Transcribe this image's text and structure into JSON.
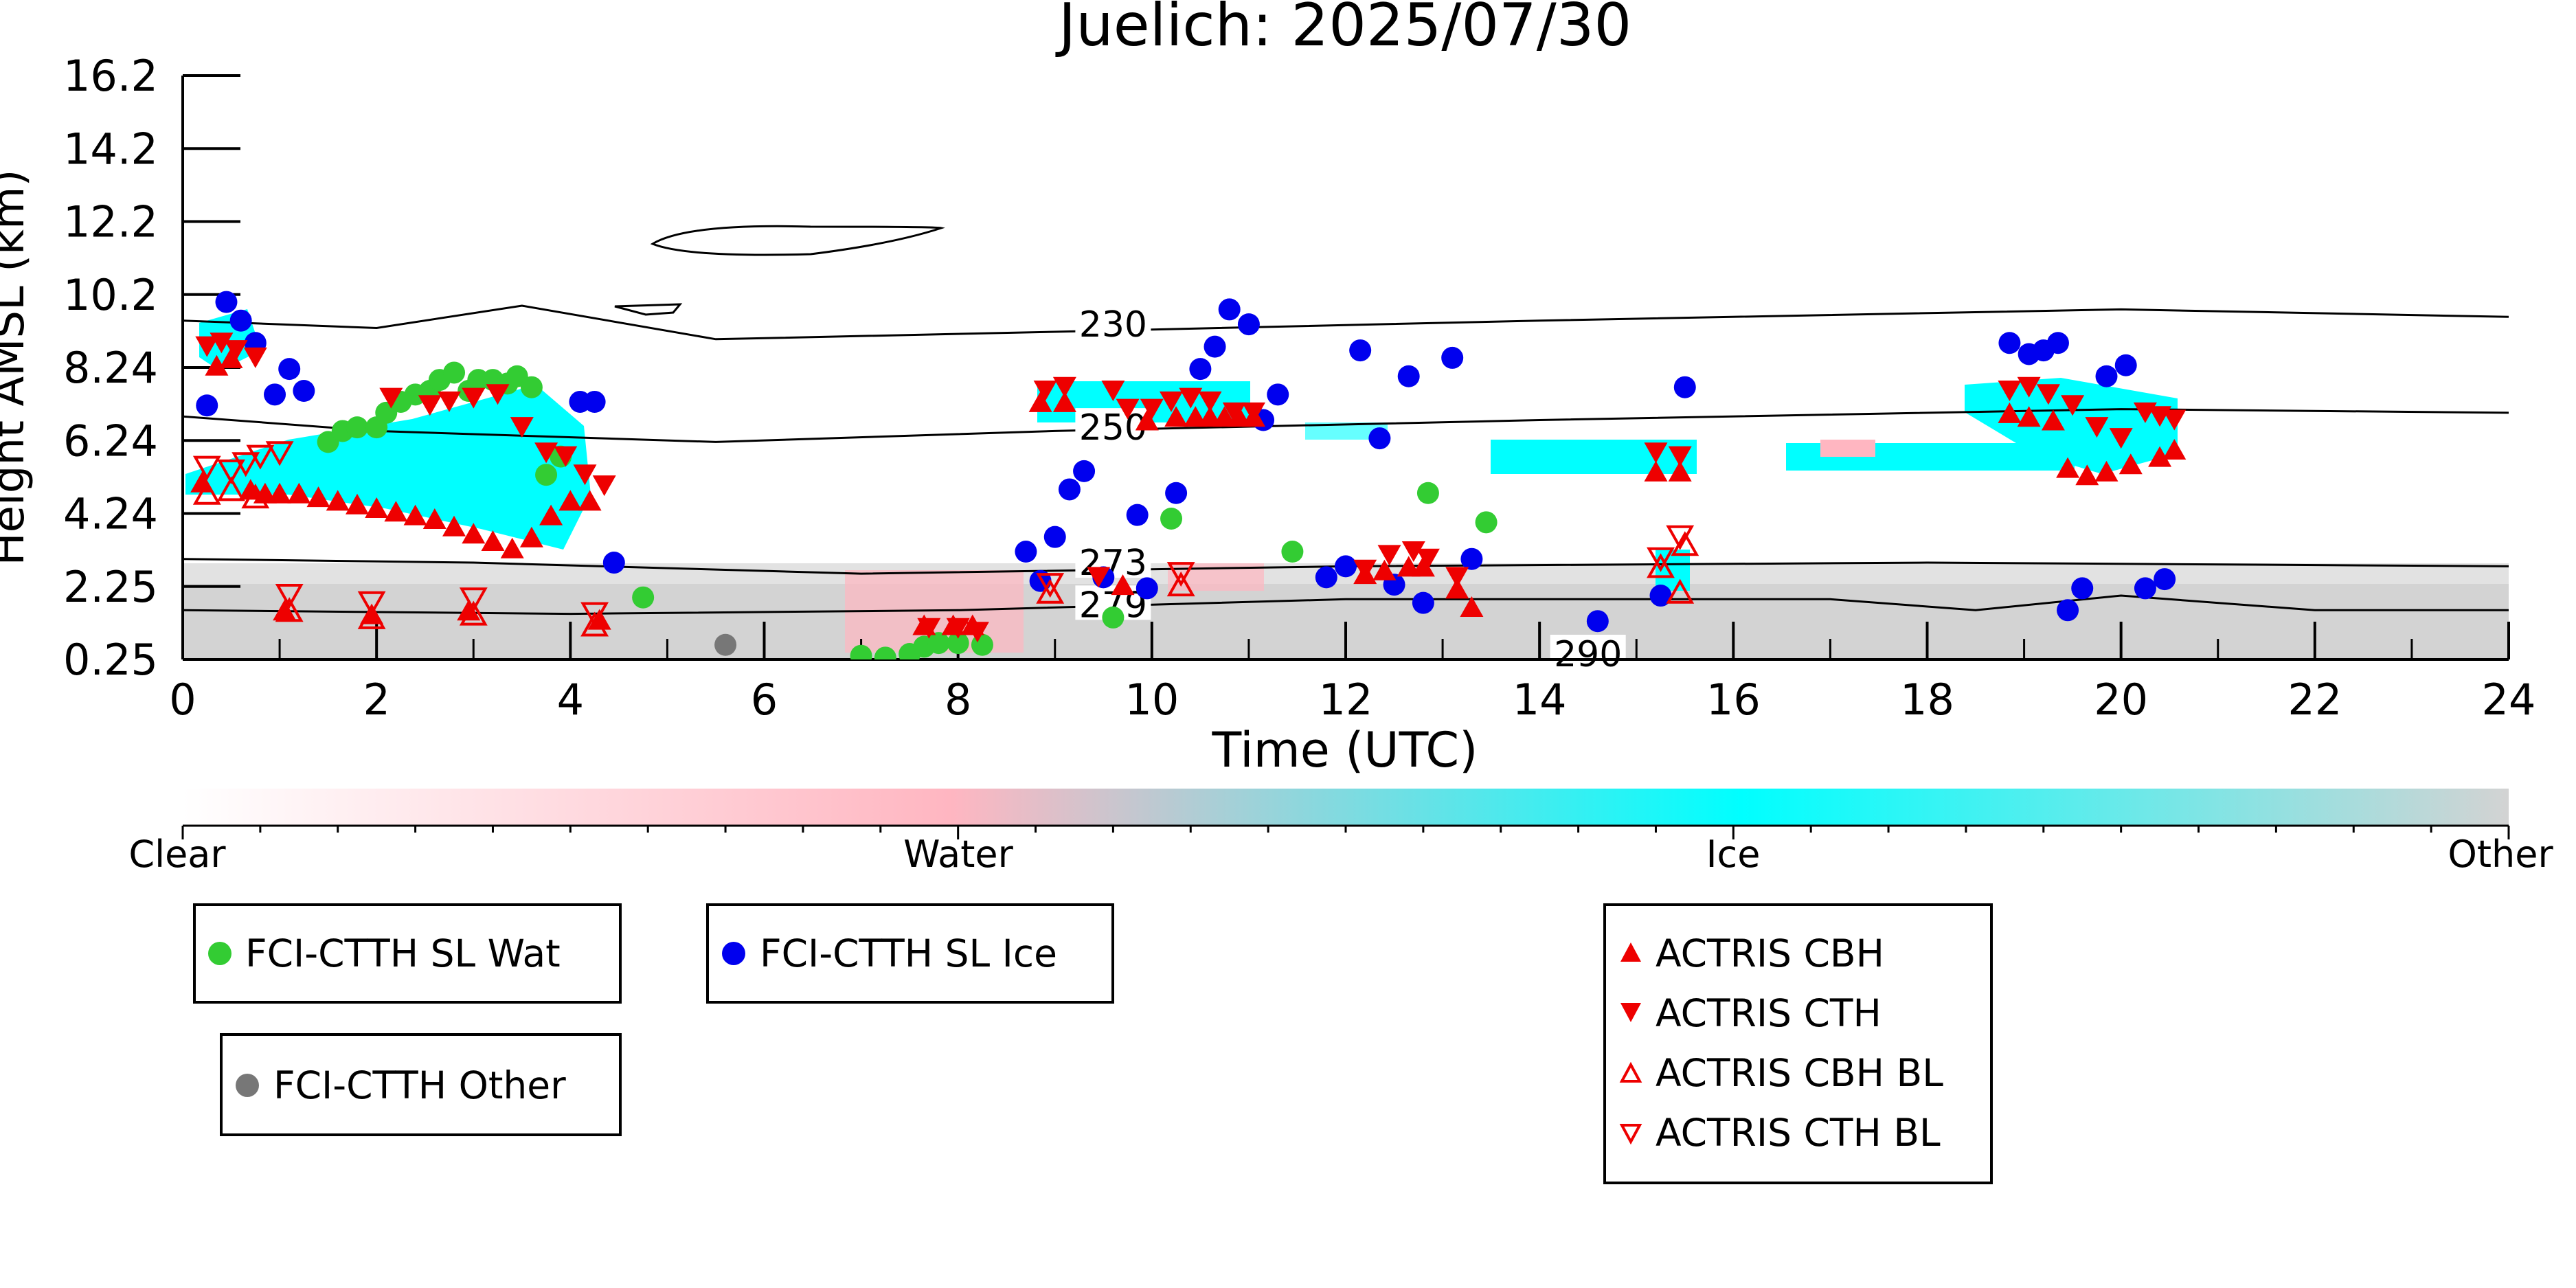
{
  "chart_data": {
    "type": "scatter",
    "title": "Juelich: 2025/07/30",
    "xlabel": "Time (UTC)",
    "ylabel": "Height AMSL (km)",
    "xlim": [
      0,
      24
    ],
    "ylim": [
      0.25,
      16.2
    ],
    "x_ticks": [
      "0",
      "2",
      "4",
      "6",
      "8",
      "10",
      "12",
      "14",
      "16",
      "18",
      "20",
      "22",
      "24"
    ],
    "y_ticks": [
      "0.25",
      "2.25",
      "4.24",
      "6.24",
      "8.24",
      "10.2",
      "12.2",
      "14.2",
      "16.2"
    ],
    "y_tick_values": [
      0.25,
      2.25,
      4.24,
      6.24,
      8.24,
      10.2,
      12.2,
      14.2,
      16.2
    ],
    "grid": false,
    "colorbar": {
      "labels": [
        "Clear",
        "Water",
        "Ice",
        "Other"
      ],
      "colors": [
        "#ffffff",
        "#ffb6c1",
        "#00ffff",
        "#d3d3d3"
      ]
    },
    "temperature_contour_labels": [
      {
        "text": "230",
        "x": 9.6,
        "y": 9.4
      },
      {
        "text": "250",
        "x": 9.6,
        "y": 6.6
      },
      {
        "text": "273",
        "x": 9.6,
        "y": 2.9
      },
      {
        "text": "279",
        "x": 9.6,
        "y": 1.75
      },
      {
        "text": "290",
        "x": 14.5,
        "y": 0.4
      }
    ],
    "temperature_contours": [
      {
        "level": 230,
        "points": [
          [
            0,
            9.5
          ],
          [
            2,
            9.3
          ],
          [
            3.5,
            9.9
          ],
          [
            5.5,
            9.0
          ],
          [
            9,
            9.2
          ],
          [
            14,
            9.5
          ],
          [
            20,
            9.8
          ],
          [
            24,
            9.6
          ]
        ]
      },
      {
        "level": 250,
        "points": [
          [
            0,
            6.9
          ],
          [
            2,
            6.5
          ],
          [
            5.5,
            6.2
          ],
          [
            9,
            6.5
          ],
          [
            14,
            6.8
          ],
          [
            20,
            7.1
          ],
          [
            24,
            7.0
          ]
        ]
      },
      {
        "level": 273,
        "points": [
          [
            0,
            3.0
          ],
          [
            3,
            2.9
          ],
          [
            7,
            2.6
          ],
          [
            12,
            2.8
          ],
          [
            18,
            2.9
          ],
          [
            24,
            2.8
          ]
        ]
      },
      {
        "level": 279,
        "points": [
          [
            0,
            1.6
          ],
          [
            4,
            1.5
          ],
          [
            8,
            1.6
          ],
          [
            12,
            1.9
          ],
          [
            17,
            1.9
          ],
          [
            18.5,
            1.6
          ],
          [
            20,
            2.0
          ],
          [
            22,
            1.6
          ],
          [
            24,
            1.6
          ]
        ]
      }
    ],
    "series": [
      {
        "name": "FCI-CTTH SL Wat",
        "color": "#33cc33",
        "marker": "circle",
        "points": [
          [
            1.5,
            6.2
          ],
          [
            1.65,
            6.5
          ],
          [
            1.8,
            6.6
          ],
          [
            2.0,
            6.6
          ],
          [
            2.1,
            7.0
          ],
          [
            2.25,
            7.3
          ],
          [
            2.4,
            7.5
          ],
          [
            2.55,
            7.6
          ],
          [
            2.65,
            7.9
          ],
          [
            2.8,
            8.1
          ],
          [
            2.95,
            7.6
          ],
          [
            3.05,
            7.9
          ],
          [
            3.2,
            7.9
          ],
          [
            3.35,
            7.8
          ],
          [
            3.45,
            8.0
          ],
          [
            3.6,
            7.7
          ],
          [
            3.75,
            5.3
          ],
          [
            3.9,
            5.8
          ],
          [
            4.75,
            1.95
          ],
          [
            7.0,
            0.35
          ],
          [
            7.25,
            0.3
          ],
          [
            7.5,
            0.4
          ],
          [
            7.65,
            0.6
          ],
          [
            7.8,
            0.7
          ],
          [
            8.0,
            0.7
          ],
          [
            8.25,
            0.65
          ],
          [
            9.6,
            1.4
          ],
          [
            10.2,
            4.1
          ],
          [
            11.45,
            3.2
          ],
          [
            12.85,
            4.8
          ],
          [
            13.45,
            4.0
          ]
        ]
      },
      {
        "name": "FCI-CTTH SL Ice",
        "color": "#0000ee",
        "marker": "circle",
        "points": [
          [
            0.25,
            7.2
          ],
          [
            0.45,
            10.0
          ],
          [
            0.6,
            9.5
          ],
          [
            0.75,
            8.9
          ],
          [
            0.95,
            7.5
          ],
          [
            1.1,
            8.2
          ],
          [
            1.25,
            7.6
          ],
          [
            4.1,
            7.3
          ],
          [
            4.25,
            7.3
          ],
          [
            4.45,
            2.9
          ],
          [
            8.7,
            3.2
          ],
          [
            8.85,
            2.4
          ],
          [
            9.0,
            3.6
          ],
          [
            9.15,
            4.9
          ],
          [
            9.3,
            5.4
          ],
          [
            9.5,
            2.5
          ],
          [
            9.85,
            4.2
          ],
          [
            9.95,
            2.2
          ],
          [
            10.25,
            4.8
          ],
          [
            10.5,
            8.2
          ],
          [
            10.65,
            8.8
          ],
          [
            10.8,
            9.8
          ],
          [
            11.0,
            9.4
          ],
          [
            11.15,
            6.8
          ],
          [
            11.3,
            7.5
          ],
          [
            11.8,
            2.5
          ],
          [
            12.0,
            2.8
          ],
          [
            12.15,
            8.7
          ],
          [
            12.35,
            6.3
          ],
          [
            12.5,
            2.3
          ],
          [
            12.65,
            8.0
          ],
          [
            12.8,
            1.8
          ],
          [
            13.1,
            8.5
          ],
          [
            13.3,
            3.0
          ],
          [
            14.6,
            1.3
          ],
          [
            15.25,
            2.0
          ],
          [
            15.5,
            7.7
          ],
          [
            18.85,
            8.9
          ],
          [
            19.05,
            8.6
          ],
          [
            19.2,
            8.7
          ],
          [
            19.35,
            8.9
          ],
          [
            19.45,
            1.6
          ],
          [
            19.6,
            2.2
          ],
          [
            19.85,
            8.0
          ],
          [
            20.05,
            8.3
          ],
          [
            20.25,
            2.2
          ],
          [
            20.45,
            2.45
          ]
        ]
      },
      {
        "name": "FCI-CTTH Other",
        "color": "#777777",
        "marker": "circle",
        "points": [
          [
            5.6,
            0.65
          ]
        ]
      },
      {
        "name": "ACTRIS CBH",
        "color": "#ee0000",
        "marker": "triangle-up",
        "points": [
          [
            0.2,
            5.1
          ],
          [
            0.35,
            8.3
          ],
          [
            0.5,
            8.5
          ],
          [
            0.7,
            4.9
          ],
          [
            0.85,
            4.8
          ],
          [
            1.0,
            4.8
          ],
          [
            1.2,
            4.8
          ],
          [
            1.4,
            4.7
          ],
          [
            1.6,
            4.6
          ],
          [
            1.8,
            4.5
          ],
          [
            2.0,
            4.4
          ],
          [
            2.2,
            4.3
          ],
          [
            2.4,
            4.2
          ],
          [
            2.6,
            4.1
          ],
          [
            2.8,
            3.9
          ],
          [
            3.0,
            3.7
          ],
          [
            3.2,
            3.5
          ],
          [
            3.4,
            3.3
          ],
          [
            3.6,
            3.6
          ],
          [
            3.8,
            4.2
          ],
          [
            4.0,
            4.6
          ],
          [
            4.2,
            4.6
          ],
          [
            1.05,
            1.6
          ],
          [
            1.95,
            1.5
          ],
          [
            2.95,
            1.6
          ],
          [
            4.3,
            1.35
          ],
          [
            7.65,
            1.2
          ],
          [
            7.95,
            1.2
          ],
          [
            8.15,
            1.2
          ],
          [
            8.85,
            7.3
          ],
          [
            9.1,
            7.3
          ],
          [
            9.7,
            2.3
          ],
          [
            9.95,
            6.8
          ],
          [
            10.25,
            6.9
          ],
          [
            10.45,
            6.9
          ],
          [
            10.6,
            6.9
          ],
          [
            10.75,
            6.9
          ],
          [
            10.9,
            6.9
          ],
          [
            11.05,
            6.9
          ],
          [
            12.2,
            2.6
          ],
          [
            12.4,
            2.7
          ],
          [
            12.65,
            2.8
          ],
          [
            12.8,
            2.8
          ],
          [
            13.15,
            2.2
          ],
          [
            13.3,
            1.7
          ],
          [
            15.2,
            5.4
          ],
          [
            15.45,
            5.4
          ],
          [
            18.85,
            7.0
          ],
          [
            19.05,
            6.9
          ],
          [
            19.3,
            6.8
          ],
          [
            19.45,
            5.5
          ],
          [
            19.65,
            5.3
          ],
          [
            19.85,
            5.4
          ],
          [
            20.1,
            5.6
          ],
          [
            20.4,
            5.8
          ],
          [
            20.55,
            6.0
          ]
        ]
      },
      {
        "name": "ACTRIS CTH",
        "color": "#ee0000",
        "marker": "triangle-down",
        "points": [
          [
            0.25,
            8.8
          ],
          [
            0.4,
            8.9
          ],
          [
            0.55,
            8.7
          ],
          [
            0.75,
            8.5
          ],
          [
            2.15,
            7.4
          ],
          [
            2.55,
            7.2
          ],
          [
            2.75,
            7.3
          ],
          [
            3.0,
            7.4
          ],
          [
            3.25,
            7.5
          ],
          [
            3.5,
            6.6
          ],
          [
            3.75,
            5.9
          ],
          [
            3.95,
            5.8
          ],
          [
            4.15,
            5.3
          ],
          [
            4.35,
            5.0
          ],
          [
            7.7,
            1.1
          ],
          [
            8.0,
            1.1
          ],
          [
            8.2,
            1.0
          ],
          [
            8.9,
            7.6
          ],
          [
            9.1,
            7.7
          ],
          [
            9.45,
            2.5
          ],
          [
            9.6,
            7.6
          ],
          [
            9.75,
            7.1
          ],
          [
            10.0,
            7.1
          ],
          [
            10.2,
            7.3
          ],
          [
            10.4,
            7.4
          ],
          [
            10.6,
            7.3
          ],
          [
            10.85,
            7.0
          ],
          [
            11.05,
            7.0
          ],
          [
            12.2,
            2.7
          ],
          [
            12.45,
            3.1
          ],
          [
            12.7,
            3.2
          ],
          [
            12.85,
            3.0
          ],
          [
            13.15,
            2.5
          ],
          [
            15.2,
            5.9
          ],
          [
            15.45,
            5.8
          ],
          [
            18.85,
            7.6
          ],
          [
            19.05,
            7.7
          ],
          [
            19.25,
            7.5
          ],
          [
            19.5,
            7.2
          ],
          [
            19.75,
            6.6
          ],
          [
            20.0,
            6.3
          ],
          [
            20.25,
            7.0
          ],
          [
            20.4,
            6.9
          ],
          [
            20.55,
            6.8
          ]
        ]
      },
      {
        "name": "ACTRIS CBH BL",
        "color": "#ee0000",
        "marker": "triangle-up-open",
        "points": [
          [
            0.25,
            4.8
          ],
          [
            0.5,
            4.9
          ],
          [
            0.75,
            4.7
          ],
          [
            1.1,
            1.6
          ],
          [
            1.95,
            1.4
          ],
          [
            3.0,
            1.5
          ],
          [
            4.25,
            1.2
          ],
          [
            8.95,
            2.1
          ],
          [
            10.3,
            2.3
          ],
          [
            15.25,
            2.8
          ],
          [
            15.45,
            2.1
          ],
          [
            15.5,
            3.4
          ]
        ]
      },
      {
        "name": "ACTRIS CTH BL",
        "color": "#ee0000",
        "marker": "triangle-down-open",
        "points": [
          [
            0.25,
            5.5
          ],
          [
            0.5,
            5.4
          ],
          [
            0.65,
            5.6
          ],
          [
            0.8,
            5.8
          ],
          [
            1.0,
            5.9
          ],
          [
            1.1,
            2.0
          ],
          [
            1.95,
            1.8
          ],
          [
            3.0,
            1.9
          ],
          [
            4.25,
            1.5
          ],
          [
            8.95,
            2.3
          ],
          [
            10.3,
            2.6
          ],
          [
            15.25,
            3.0
          ],
          [
            15.45,
            3.6
          ]
        ]
      }
    ],
    "legend": {
      "boxes": [
        {
          "entries": [
            "FCI-CTTH SL Wat"
          ]
        },
        {
          "entries": [
            "FCI-CTTH SL Ice"
          ]
        },
        {
          "entries": [
            "FCI-CTTH Other"
          ]
        },
        {
          "entries": [
            "ACTRIS CBH",
            "ACTRIS CTH",
            "ACTRIS CBH BL",
            "ACTRIS CTH BL"
          ]
        }
      ]
    }
  }
}
